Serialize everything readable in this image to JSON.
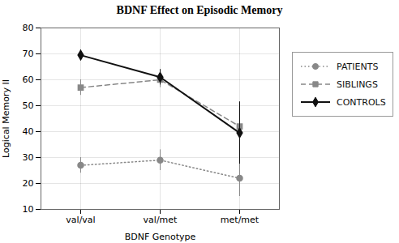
{
  "chart_data": {
    "type": "line",
    "title": "BDNF Effect on Episodic Memory",
    "xlabel": "BDNF Genotype",
    "ylabel": "Logical Memory II",
    "categories": [
      "val/val",
      "val/met",
      "met/met"
    ],
    "series": [
      {
        "name": "PATIENTS",
        "color": "#888888",
        "values": [
          27,
          29,
          22
        ],
        "yerr": [
          3,
          4,
          7
        ],
        "marker": "circle",
        "line_style": "dotted"
      },
      {
        "name": "SIBLINGS",
        "color": "#888888",
        "values": [
          57,
          60,
          42
        ],
        "yerr": [
          3,
          3,
          8
        ],
        "marker": "square",
        "line_style": "dashed"
      },
      {
        "name": "CONTROLS",
        "color": "#111111",
        "values": [
          69.5,
          61,
          39.5
        ],
        "yerr": [
          2,
          3,
          12
        ],
        "marker": "diamond",
        "line_style": "solid"
      }
    ],
    "ylim": [
      10,
      80
    ],
    "yticks": [
      10,
      20,
      30,
      40,
      50,
      60,
      70,
      80
    ],
    "grid": true,
    "legend": "right"
  }
}
